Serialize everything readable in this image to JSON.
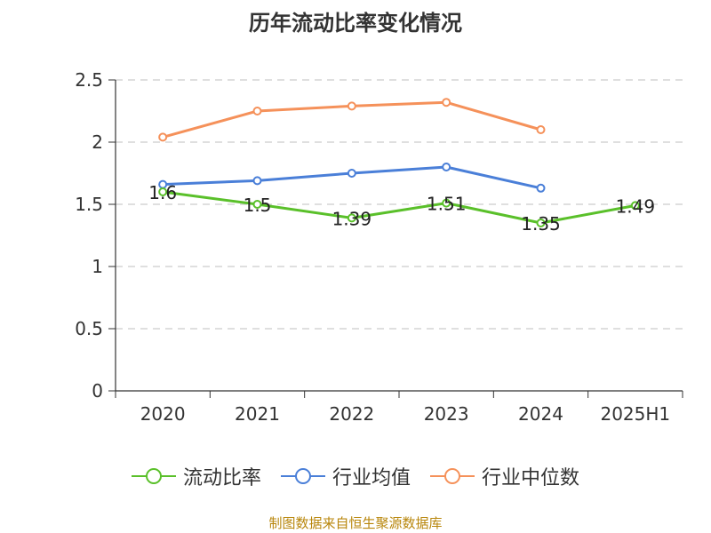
{
  "title": "历年流动比率变化情况",
  "footer": "制图数据来自恒生聚源数据库",
  "chart_data": {
    "type": "line",
    "title": "历年流动比率变化情况",
    "categories": [
      "2020",
      "2021",
      "2022",
      "2023",
      "2024",
      "2025H1"
    ],
    "ylim": [
      0,
      2.5
    ],
    "yticks": [
      0,
      0.5,
      1,
      1.5,
      2,
      2.5
    ],
    "ytick_labels": [
      "0",
      "0.5",
      "1",
      "1.5",
      "2",
      "2.5"
    ],
    "grid": true,
    "legend_position": "bottom",
    "series": [
      {
        "name": "流动比率",
        "color": "#5ac02a",
        "values": [
          1.6,
          1.5,
          1.39,
          1.51,
          1.35,
          1.49
        ],
        "labels": [
          "1.6",
          "1.5",
          "1.39",
          "1.51",
          "1.35",
          "1.49"
        ],
        "show_labels": true
      },
      {
        "name": "行业均值",
        "color": "#4a7fd8",
        "values": [
          1.66,
          1.69,
          1.75,
          1.8,
          1.63,
          null
        ],
        "show_labels": false
      },
      {
        "name": "行业中位数",
        "color": "#f5915a",
        "values": [
          2.04,
          2.25,
          2.29,
          2.32,
          2.1,
          null
        ],
        "show_labels": false
      }
    ]
  }
}
